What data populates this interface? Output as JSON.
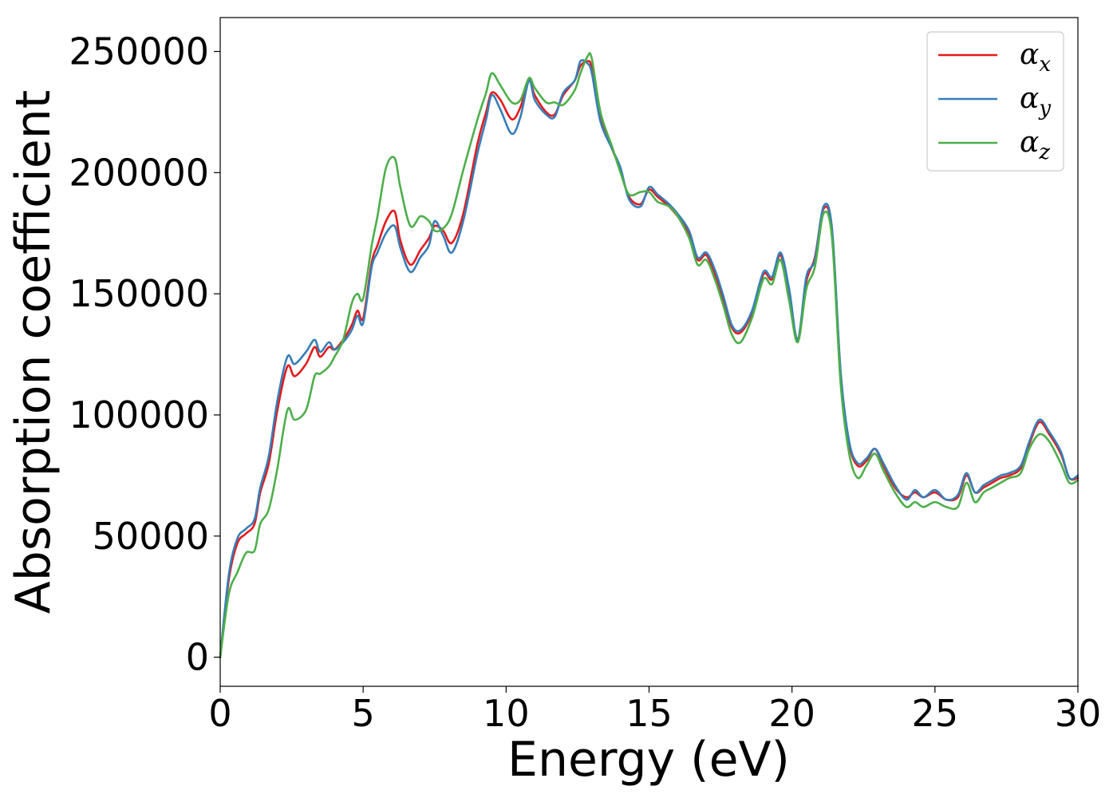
{
  "chart_data": {
    "type": "line",
    "title": "",
    "xlabel": "Energy (eV)",
    "ylabel": "Absorption coefficient",
    "xlim": [
      0,
      30
    ],
    "ylim": [
      -12000,
      264000
    ],
    "xticks": [
      0,
      5,
      10,
      15,
      20,
      25,
      30
    ],
    "yticks": [
      0,
      50000,
      100000,
      150000,
      200000,
      250000
    ],
    "xtick_labels": [
      "0",
      "5",
      "10",
      "15",
      "20",
      "25",
      "30"
    ],
    "ytick_labels": [
      "0",
      "50000",
      "100000",
      "150000",
      "200000",
      "250000"
    ],
    "grid": false,
    "legend_position": "top-right",
    "series": [
      {
        "name": "α",
        "subscript": "x",
        "color": "#e41a1c",
        "x": [
          0,
          0.3,
          0.6,
          0.9,
          1.2,
          1.4,
          1.7,
          2.0,
          2.35,
          2.6,
          3.0,
          3.3,
          3.5,
          3.8,
          4.0,
          4.3,
          4.6,
          4.8,
          5.0,
          5.3,
          5.5,
          5.8,
          6.1,
          6.3,
          6.65,
          7.0,
          7.3,
          7.5,
          7.8,
          8.1,
          8.5,
          9.0,
          9.3,
          9.5,
          9.8,
          10.2,
          10.5,
          10.8,
          11.0,
          11.4,
          11.7,
          12.0,
          12.4,
          12.6,
          12.85,
          13.0,
          13.3,
          13.7,
          14.0,
          14.3,
          14.7,
          15.0,
          15.3,
          15.7,
          16.0,
          16.4,
          16.7,
          17.0,
          17.3,
          17.6,
          17.9,
          18.2,
          18.6,
          19.0,
          19.3,
          19.6,
          19.9,
          20.2,
          20.5,
          20.8,
          21.1,
          21.4,
          21.7,
          22.0,
          22.3,
          22.6,
          22.9,
          23.2,
          23.6,
          24.0,
          24.3,
          24.6,
          25.0,
          25.4,
          25.8,
          26.1,
          26.4,
          26.7,
          27.0,
          27.3,
          27.6,
          28.0,
          28.3,
          28.65,
          29.0,
          29.4,
          29.7,
          30.0
        ],
        "y": [
          0,
          32000,
          47000,
          51000,
          55000,
          68000,
          80000,
          102000,
          120000,
          116000,
          121000,
          128000,
          124000,
          128000,
          127000,
          131000,
          137000,
          143000,
          140000,
          163000,
          170000,
          180000,
          184000,
          172000,
          162000,
          168000,
          173000,
          178000,
          176000,
          171000,
          183000,
          212000,
          225000,
          233000,
          230000,
          222000,
          227000,
          238000,
          232000,
          225000,
          224000,
          232000,
          238000,
          244000,
          246000,
          243000,
          222000,
          210000,
          201000,
          190000,
          187000,
          193000,
          190000,
          186000,
          182000,
          175000,
          164000,
          166000,
          158000,
          147000,
          136000,
          134000,
          142000,
          158000,
          156000,
          166000,
          150000,
          131000,
          155000,
          165000,
          185000,
          176000,
          117000,
          88000,
          79000,
          81000,
          86000,
          79000,
          70000,
          66000,
          68000,
          66000,
          68000,
          65000,
          66000,
          75000,
          68000,
          70000,
          72000,
          74000,
          75000,
          78000,
          88000,
          97000,
          92000,
          84000,
          74000,
          74000
        ]
      },
      {
        "name": "α",
        "subscript": "y",
        "color": "#377eb8",
        "x": [
          0,
          0.3,
          0.6,
          0.9,
          1.2,
          1.4,
          1.7,
          2.0,
          2.35,
          2.6,
          3.0,
          3.3,
          3.5,
          3.8,
          4.0,
          4.3,
          4.6,
          4.8,
          5.0,
          5.3,
          5.5,
          5.8,
          6.1,
          6.3,
          6.65,
          7.0,
          7.3,
          7.5,
          7.8,
          8.1,
          8.5,
          9.0,
          9.3,
          9.5,
          9.8,
          10.2,
          10.5,
          10.8,
          11.0,
          11.4,
          11.7,
          12.0,
          12.4,
          12.6,
          12.85,
          13.0,
          13.3,
          13.7,
          14.0,
          14.3,
          14.7,
          15.0,
          15.3,
          15.7,
          16.0,
          16.4,
          16.7,
          17.0,
          17.3,
          17.6,
          17.9,
          18.2,
          18.6,
          19.0,
          19.3,
          19.6,
          19.9,
          20.2,
          20.5,
          20.8,
          21.1,
          21.4,
          21.7,
          22.0,
          22.3,
          22.6,
          22.9,
          23.2,
          23.6,
          24.0,
          24.3,
          24.6,
          25.0,
          25.4,
          25.8,
          26.1,
          26.4,
          26.7,
          27.0,
          27.3,
          27.6,
          28.0,
          28.3,
          28.65,
          29.0,
          29.4,
          29.7,
          30.0
        ],
        "y": [
          0,
          34000,
          49000,
          53000,
          57000,
          70000,
          83000,
          106000,
          124000,
          121000,
          126000,
          131000,
          126000,
          130000,
          127000,
          130000,
          135000,
          141000,
          138000,
          161000,
          167000,
          175000,
          178000,
          169000,
          159000,
          165000,
          170000,
          180000,
          174000,
          167000,
          180000,
          208000,
          222000,
          232000,
          226000,
          216000,
          223000,
          238000,
          230000,
          224000,
          223000,
          233000,
          238000,
          246000,
          245000,
          241000,
          221000,
          210000,
          202000,
          189000,
          186000,
          194000,
          191000,
          187000,
          183000,
          176000,
          165000,
          167000,
          160000,
          149000,
          137000,
          135000,
          143000,
          159000,
          157000,
          167000,
          152000,
          131000,
          157000,
          164000,
          186000,
          177000,
          118000,
          89000,
          80000,
          82000,
          86000,
          80000,
          71000,
          65000,
          69000,
          66000,
          69000,
          65000,
          67000,
          76000,
          68000,
          71000,
          73000,
          75000,
          76000,
          79000,
          89000,
          98000,
          93000,
          85000,
          74000,
          75000
        ]
      },
      {
        "name": "α",
        "subscript": "z",
        "color": "#4daf4a",
        "x": [
          0,
          0.3,
          0.6,
          0.9,
          1.2,
          1.4,
          1.7,
          2.0,
          2.35,
          2.6,
          3.0,
          3.3,
          3.5,
          3.8,
          4.0,
          4.3,
          4.6,
          4.8,
          5.0,
          5.3,
          5.5,
          5.8,
          6.1,
          6.3,
          6.65,
          7.0,
          7.3,
          7.5,
          7.8,
          8.1,
          8.5,
          9.0,
          9.3,
          9.5,
          9.8,
          10.2,
          10.5,
          10.8,
          11.0,
          11.4,
          11.7,
          12.0,
          12.4,
          12.6,
          12.85,
          13.0,
          13.3,
          13.7,
          14.0,
          14.3,
          14.7,
          15.0,
          15.3,
          15.7,
          16.0,
          16.4,
          16.7,
          17.0,
          17.3,
          17.6,
          17.9,
          18.2,
          18.6,
          19.0,
          19.3,
          19.6,
          19.9,
          20.2,
          20.5,
          20.8,
          21.1,
          21.4,
          21.7,
          22.0,
          22.3,
          22.6,
          22.9,
          23.2,
          23.6,
          24.0,
          24.3,
          24.6,
          25.0,
          25.4,
          25.8,
          26.1,
          26.4,
          26.7,
          27.0,
          27.3,
          27.6,
          28.0,
          28.3,
          28.65,
          29.0,
          29.4,
          29.7,
          30.0
        ],
        "y": [
          0,
          26000,
          35000,
          43000,
          44000,
          55000,
          61000,
          78000,
          102000,
          98000,
          102000,
          116000,
          117000,
          120000,
          124000,
          131000,
          146000,
          150000,
          148000,
          170000,
          182000,
          202000,
          206000,
          194000,
          178000,
          182000,
          180000,
          176000,
          177000,
          183000,
          201000,
          222000,
          233000,
          241000,
          236000,
          229000,
          230000,
          239000,
          235000,
          229000,
          229000,
          228000,
          234000,
          241000,
          248000,
          247000,
          225000,
          211000,
          200000,
          191000,
          192000,
          192000,
          188000,
          186000,
          182000,
          173000,
          162000,
          164000,
          156000,
          145000,
          133000,
          130000,
          140000,
          156000,
          154000,
          164000,
          147000,
          130000,
          152000,
          161000,
          183000,
          173000,
          113000,
          84000,
          74000,
          79000,
          84000,
          77000,
          68000,
          62000,
          64000,
          62000,
          64000,
          62000,
          62000,
          72000,
          64000,
          68000,
          70000,
          72000,
          74000,
          76000,
          86000,
          92000,
          89000,
          80000,
          72000,
          73000
        ]
      }
    ]
  }
}
